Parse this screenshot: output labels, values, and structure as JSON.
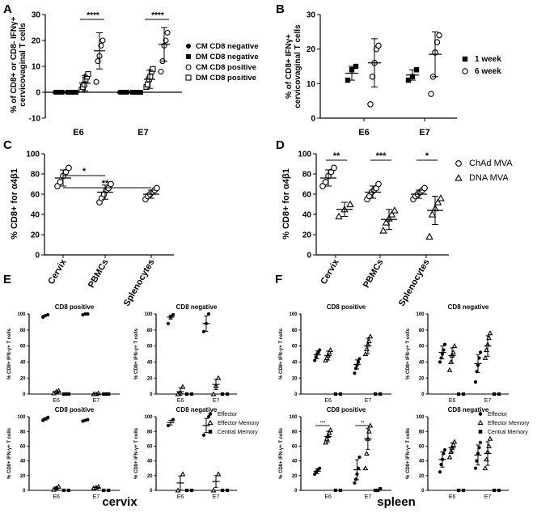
{
  "figure": {
    "title": "Figure: CD8+ T cell responses in cervix and spleen",
    "bottom_label_cervix": "cervix",
    "bottom_label_spleen": "spleen"
  },
  "chart_data": [
    {
      "panel": "A",
      "type": "scatter",
      "ylabel": "% of CD8+ or CD8- IFNγ+ cervicovaginal T cells",
      "ylim": [
        -10,
        30
      ],
      "yticks": [
        -10,
        0,
        10,
        20,
        30
      ],
      "categories": [
        "E6",
        "E7"
      ],
      "series": [
        {
          "name": "CM CD8 negative",
          "marker": "circle-filled",
          "values": {
            "E6": [
              0,
              0,
              0,
              0,
              0,
              0
            ],
            "E7": [
              0,
              0,
              0,
              0,
              0,
              0
            ]
          },
          "mean": {
            "E6": 0,
            "E7": 0
          }
        },
        {
          "name": "DM CD8 negative",
          "marker": "square-filled",
          "values": {
            "E6": [
              0,
              0,
              0,
              0,
              0,
              0
            ],
            "E7": [
              0,
              0,
              0,
              0,
              0,
              0
            ]
          },
          "mean": {
            "E6": 0,
            "E7": 0
          }
        },
        {
          "name": "CM CD8 positive",
          "marker": "circle-open",
          "values": {
            "E6": [
              4,
              12,
              14,
              18,
              20
            ],
            "E7": [
              8,
              12,
              18,
              20,
              23
            ]
          },
          "mean": {
            "E6": 16,
            "E7": 18.5
          },
          "sd": {
            "E6": 7,
            "E7": 6.5
          }
        },
        {
          "name": "DM CD8 positive",
          "marker": "square-open",
          "values": {
            "E6": [
              1,
              2,
              3,
              5,
              6,
              7
            ],
            "E7": [
              2,
              3,
              5,
              6,
              8,
              9
            ]
          },
          "mean": {
            "E6": 3.5,
            "E7": 5
          },
          "sd": {
            "E6": 3,
            "E7": 3.5
          }
        }
      ],
      "annotations": [
        {
          "text": "****",
          "category": "E6"
        },
        {
          "text": "****",
          "category": "E7"
        }
      ],
      "legend": [
        "CM CD8 negative",
        "DM CD8 negative",
        "CM CD8 positive",
        "DM CD8 positive"
      ]
    },
    {
      "panel": "B",
      "type": "scatter",
      "ylabel": "% of CD8+ IFNγ+ cervicovaginal T cells",
      "ylim": [
        0,
        30
      ],
      "yticks": [
        0,
        10,
        20,
        30
      ],
      "categories": [
        "E6",
        "E7"
      ],
      "series": [
        {
          "name": "1 week",
          "marker": "square-filled",
          "values": {
            "E6": [
              11,
              14,
              15
            ],
            "E7": [
              11,
              12,
              14
            ]
          },
          "mean": {
            "E6": 13,
            "E7": 12.5
          },
          "sd": {
            "E6": 2,
            "E7": 1.5
          }
        },
        {
          "name": "6 week",
          "marker": "circle-open",
          "values": {
            "E6": [
              4,
              12,
              16,
              20,
              21
            ],
            "E7": [
              7,
              12,
              19,
              22,
              24
            ]
          },
          "mean": {
            "E6": 16,
            "E7": 18.5
          },
          "sd": {
            "E6": 7,
            "E7": 6.5
          }
        }
      ],
      "legend": [
        "1 week",
        "6 week"
      ]
    },
    {
      "panel": "C",
      "type": "scatter",
      "ylabel": "% CD8+ for α4β1",
      "ylim": [
        0,
        100
      ],
      "yticks": [
        0,
        20,
        40,
        60,
        80,
        100
      ],
      "categories": [
        "Cervix",
        "PBMCs",
        "Splenocytes"
      ],
      "series": [
        {
          "name": "ChAd MVA",
          "marker": "circle-open",
          "values": {
            "Cervix": [
              68,
              72,
              78,
              82,
              86
            ],
            "PBMCs": [
              52,
              56,
              60,
              64,
              66,
              70
            ],
            "Splenocytes": [
              55,
              58,
              60,
              62,
              64,
              66
            ]
          },
          "mean": {
            "Cervix": 76,
            "PBMCs": 62,
            "Splenocytes": 60
          },
          "sd": {
            "Cervix": 8,
            "PBMCs": 7,
            "Splenocytes": 4
          }
        }
      ],
      "annotations": [
        {
          "text": "*",
          "from": "Cervix",
          "to": "PBMCs"
        },
        {
          "text": "**",
          "from": "Cervix",
          "to": "Splenocytes"
        }
      ]
    },
    {
      "panel": "D",
      "type": "scatter",
      "ylabel": "% CD8+ for α4β1",
      "ylim": [
        0,
        100
      ],
      "yticks": [
        0,
        20,
        40,
        60,
        80,
        100
      ],
      "categories": [
        "Cervix",
        "PBMCs",
        "Splenocytes"
      ],
      "series": [
        {
          "name": "ChAd MVA",
          "marker": "circle-open",
          "values": {
            "Cervix": [
              68,
              72,
              78,
              82,
              86
            ],
            "PBMCs": [
              55,
              58,
              62,
              64,
              66,
              70
            ],
            "Splenocytes": [
              55,
              58,
              60,
              62,
              64,
              66
            ]
          },
          "mean": {
            "Cervix": 76,
            "PBMCs": 62,
            "Splenocytes": 60
          },
          "sd": {
            "Cervix": 8,
            "PBMCs": 6,
            "Splenocytes": 4
          }
        },
        {
          "name": "DNA MVA",
          "marker": "triangle-open",
          "values": {
            "Cervix": [
              38,
              45,
              50
            ],
            "PBMCs": [
              24,
              32,
              36,
              40,
              44
            ],
            "Splenocytes": [
              18,
              40,
              46,
              52,
              56
            ]
          },
          "mean": {
            "Cervix": 45,
            "PBMCs": 35,
            "Splenocytes": 44
          },
          "sd": {
            "Cervix": 7,
            "PBMCs": 10,
            "Splenocytes": 14
          }
        }
      ],
      "annotations": [
        {
          "text": "**",
          "category": "Cervix"
        },
        {
          "text": "***",
          "category": "PBMCs"
        },
        {
          "text": "*",
          "category": "Splenocytes"
        }
      ],
      "legend": [
        "ChAd MVA",
        "DNA MVA"
      ]
    },
    {
      "panel": "E",
      "tissue": "cervix",
      "type": "scatter",
      "ylabel": "% CD8+ IFN-γ+ T cells",
      "ylim": [
        0,
        100
      ],
      "yticks": [
        0,
        20,
        40,
        60,
        80,
        100
      ],
      "categories": [
        "E6",
        "E7"
      ],
      "legend": [
        "Effector",
        "Effector Memory",
        "Central Memory"
      ],
      "subplots": [
        {
          "title": "CD8 positive",
          "row": "top",
          "values": {
            "Effector": {
              "E6": [
                96,
                98,
                99
              ],
              "E7": [
                99,
                100,
                100
              ]
            },
            "Effector Memory": {
              "E6": [
                1,
                3,
                4
              ],
              "E7": [
                0,
                0,
                1
              ]
            },
            "Central Memory": {
              "E6": [
                0,
                0,
                0
              ],
              "E7": [
                0,
                0,
                0
              ]
            }
          },
          "means": {
            "Effector": {
              "E6": 98,
              "E7": 100
            },
            "Effector Memory": {
              "E6": 3,
              "E7": 0
            },
            "Central Memory": {
              "E6": 0,
              "E7": 0
            }
          }
        },
        {
          "title": "CD8 negative",
          "row": "top",
          "values": {
            "Effector": {
              "E6": [
                88,
                96,
                99
              ],
              "E7": [
                78,
                88,
                100
              ]
            },
            "Effector Memory": {
              "E6": [
                0,
                2,
                9
              ],
              "E7": [
                0,
                10,
                20
              ]
            },
            "Central Memory": {
              "E6": [
                0,
                0
              ],
              "E7": [
                0,
                0
              ]
            }
          },
          "means": {
            "Effector": {
              "E6": 96,
              "E7": 88
            },
            "Effector Memory": {
              "E6": 3,
              "E7": 12
            },
            "Central Memory": {
              "E6": 0,
              "E7": 0
            }
          }
        },
        {
          "title": "CD8 positive",
          "row": "bottom",
          "values": {
            "Effector": {
              "E6": [
                95,
                97,
                99
              ],
              "E7": [
                94,
                95,
                96
              ]
            },
            "Effector Memory": {
              "E6": [
                1,
                3,
                5
              ],
              "E7": [
                3,
                4,
                5
              ]
            },
            "Central Memory": {
              "E6": [
                0,
                0
              ],
              "E7": [
                0,
                0
              ]
            }
          },
          "means": {
            "Effector": {
              "E6": 97,
              "E7": 95
            },
            "Effector Memory": {
              "E6": 3,
              "E7": 4
            },
            "Central Memory": {
              "E6": 0,
              "E7": 0
            }
          }
        },
        {
          "title": "CD8 negative",
          "row": "bottom",
          "values": {
            "Effector": {
              "E6": [
                88,
                96
              ],
              "E7": [
                75,
                100
              ]
            },
            "Effector Memory": {
              "E6": [
                0,
                22
              ],
              "E7": [
                0,
                22
              ]
            },
            "Central Memory": {
              "E6": [
                0,
                0
              ],
              "E7": [
                0,
                0
              ]
            }
          },
          "means": {
            "Effector": {
              "E6": 92,
              "E7": 88
            },
            "Effector Memory": {
              "E6": 10,
              "E7": 12
            },
            "Central Memory": {
              "E6": 0,
              "E7": 0
            }
          }
        }
      ]
    },
    {
      "panel": "F",
      "tissue": "spleen",
      "type": "scatter",
      "ylabel": "% CD8+ IFN-γ+ T cells",
      "ylim": [
        0,
        100
      ],
      "yticks": [
        0,
        20,
        40,
        60,
        80,
        100
      ],
      "categories": [
        "E6",
        "E7"
      ],
      "legend": [
        "Effector",
        "Effector Memory",
        "Central Memory"
      ],
      "subplots": [
        {
          "title": "CD8 positive",
          "row": "top",
          "values": {
            "Effector": {
              "E6": [
                42,
                46,
                50,
                52,
                55
              ],
              "E7": [
                26,
                32,
                36,
                40,
                44
              ]
            },
            "Effector Memory": {
              "E6": [
                42,
                45,
                48,
                52,
                55
              ],
              "E7": [
                50,
                56,
                62,
                66,
                72
              ]
            },
            "Central Memory": {
              "E6": [
                0,
                0
              ],
              "E7": [
                0,
                0
              ]
            }
          },
          "means": {
            "Effector": {
              "E6": 49,
              "E7": 37
            },
            "Effector Memory": {
              "E6": 48,
              "E7": 60
            },
            "Central Memory": {
              "E6": 0,
              "E7": 0
            }
          }
        },
        {
          "title": "CD8 negative",
          "row": "top",
          "values": {
            "Effector": {
              "E6": [
                40,
                45,
                50,
                55,
                62
              ],
              "E7": [
                15,
                28,
                36,
                45,
                52
              ]
            },
            "Effector Memory": {
              "E6": [
                30,
                40,
                48,
                52,
                60
              ],
              "E7": [
                45,
                55,
                62,
                70,
                76
              ]
            },
            "Central Memory": {
              "E6": [
                0,
                0
              ],
              "E7": [
                0,
                0
              ]
            }
          },
          "means": {
            "Effector": {
              "E6": 52,
              "E7": 38
            },
            "Effector Memory": {
              "E6": 48,
              "E7": 60
            },
            "Central Memory": {
              "E6": 0,
              "E7": 0
            }
          }
        },
        {
          "title": "CD8 positive",
          "row": "bottom",
          "values": {
            "Effector": {
              "E6": [
                22,
                25,
                28,
                30
              ],
              "E7": [
                10,
                15,
                22,
                30,
                45
              ]
            },
            "Effector Memory": {
              "E6": [
                65,
                70,
                74,
                78,
                82
              ],
              "E7": [
                30,
                50,
                70,
                80,
                88
              ]
            },
            "Central Memory": {
              "E6": [
                0,
                0
              ],
              "E7": [
                0,
                0,
                2
              ]
            }
          },
          "means": {
            "Effector": {
              "E6": 26,
              "E7": 28
            },
            "Effector Memory": {
              "E6": 73,
              "E7": 70
            },
            "Central Memory": {
              "E6": 0,
              "E7": 1
            }
          },
          "annotations": [
            {
              "text": "***",
              "category": "E6"
            },
            {
              "text": "**",
              "category": "E7"
            }
          ]
        },
        {
          "title": "CD8 negative",
          "row": "bottom",
          "values": {
            "Effector": {
              "E6": [
                25,
                35,
                42,
                50,
                55
              ],
              "E7": [
                30,
                40,
                50,
                58,
                65
              ]
            },
            "Effector Memory": {
              "E6": [
                45,
                52,
                58,
                62,
                66
              ],
              "E7": [
                30,
                42,
                52,
                60,
                70
              ]
            },
            "Central Memory": {
              "E6": [
                0,
                0
              ],
              "E7": [
                0,
                0
              ]
            }
          },
          "means": {
            "Effector": {
              "E6": 42,
              "E7": 48
            },
            "Effector Memory": {
              "E6": 58,
              "E7": 50
            },
            "Central Memory": {
              "E6": 0,
              "E7": 0
            }
          }
        }
      ]
    }
  ]
}
